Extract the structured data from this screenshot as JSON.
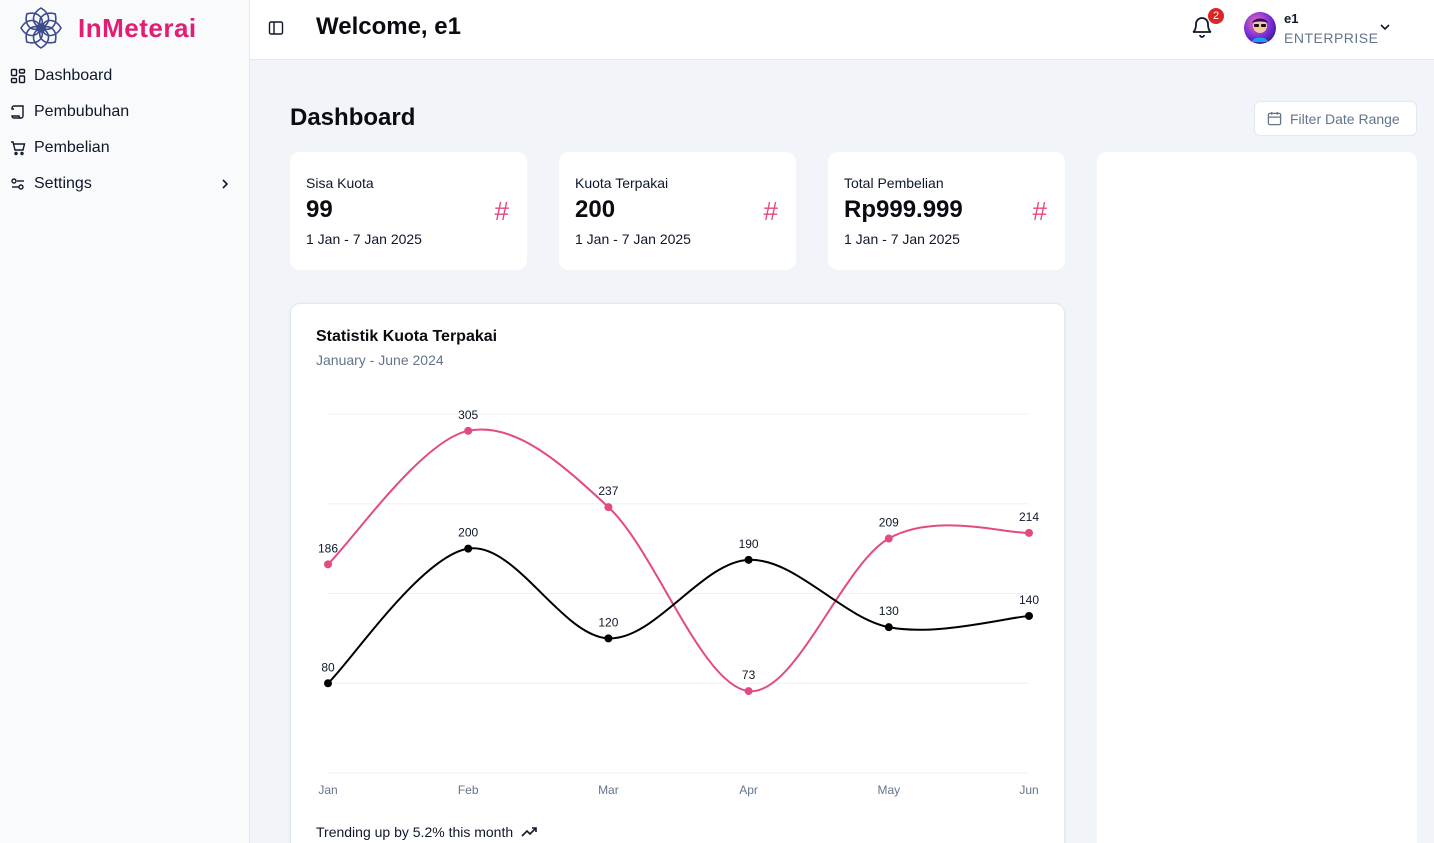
{
  "app": {
    "brand": "InMeterai"
  },
  "sidebar": {
    "items": [
      {
        "label": "Dashboard",
        "icon": "dashboard-icon"
      },
      {
        "label": "Pembubuhan",
        "icon": "scroll-icon"
      },
      {
        "label": "Pembelian",
        "icon": "cart-icon"
      },
      {
        "label": "Settings",
        "icon": "settings-icon"
      }
    ]
  },
  "header": {
    "welcome": "Welcome, e1",
    "notifications": "2",
    "user_name": "e1",
    "user_plan": "ENTERPRISE"
  },
  "main": {
    "title": "Dashboard",
    "filter_label": "Filter Date Range",
    "stats": [
      {
        "title": "Sisa Kuota",
        "value": "99",
        "range": "1 Jan - 7 Jan 2025",
        "icon": "#"
      },
      {
        "title": "Kuota Terpakai",
        "value": "200",
        "range": "1 Jan - 7 Jan 2025",
        "icon": "#"
      },
      {
        "title": "Total Pembelian",
        "value": "Rp999.999",
        "range": "1 Jan - 7 Jan 2025",
        "icon": "#"
      }
    ],
    "chart": {
      "title": "Statistik Kuota Terpakai",
      "subtitle": "January - June 2024",
      "trend": "Trending up by 5.2% this month"
    }
  },
  "colors": {
    "accent": "#e24a84",
    "series_2": "#000000"
  },
  "chart_data": {
    "type": "line",
    "categories": [
      "Jan",
      "Feb",
      "Mar",
      "Apr",
      "May",
      "Jun"
    ],
    "series": [
      {
        "name": "",
        "color": "#e24a84",
        "values": [
          186,
          305,
          237,
          73,
          209,
          214
        ]
      },
      {
        "name": "",
        "color": "#000000",
        "values": [
          80,
          200,
          120,
          190,
          130,
          140
        ]
      }
    ],
    "ylim": [
      0,
      320
    ],
    "grid": true,
    "curve": "smooth"
  }
}
